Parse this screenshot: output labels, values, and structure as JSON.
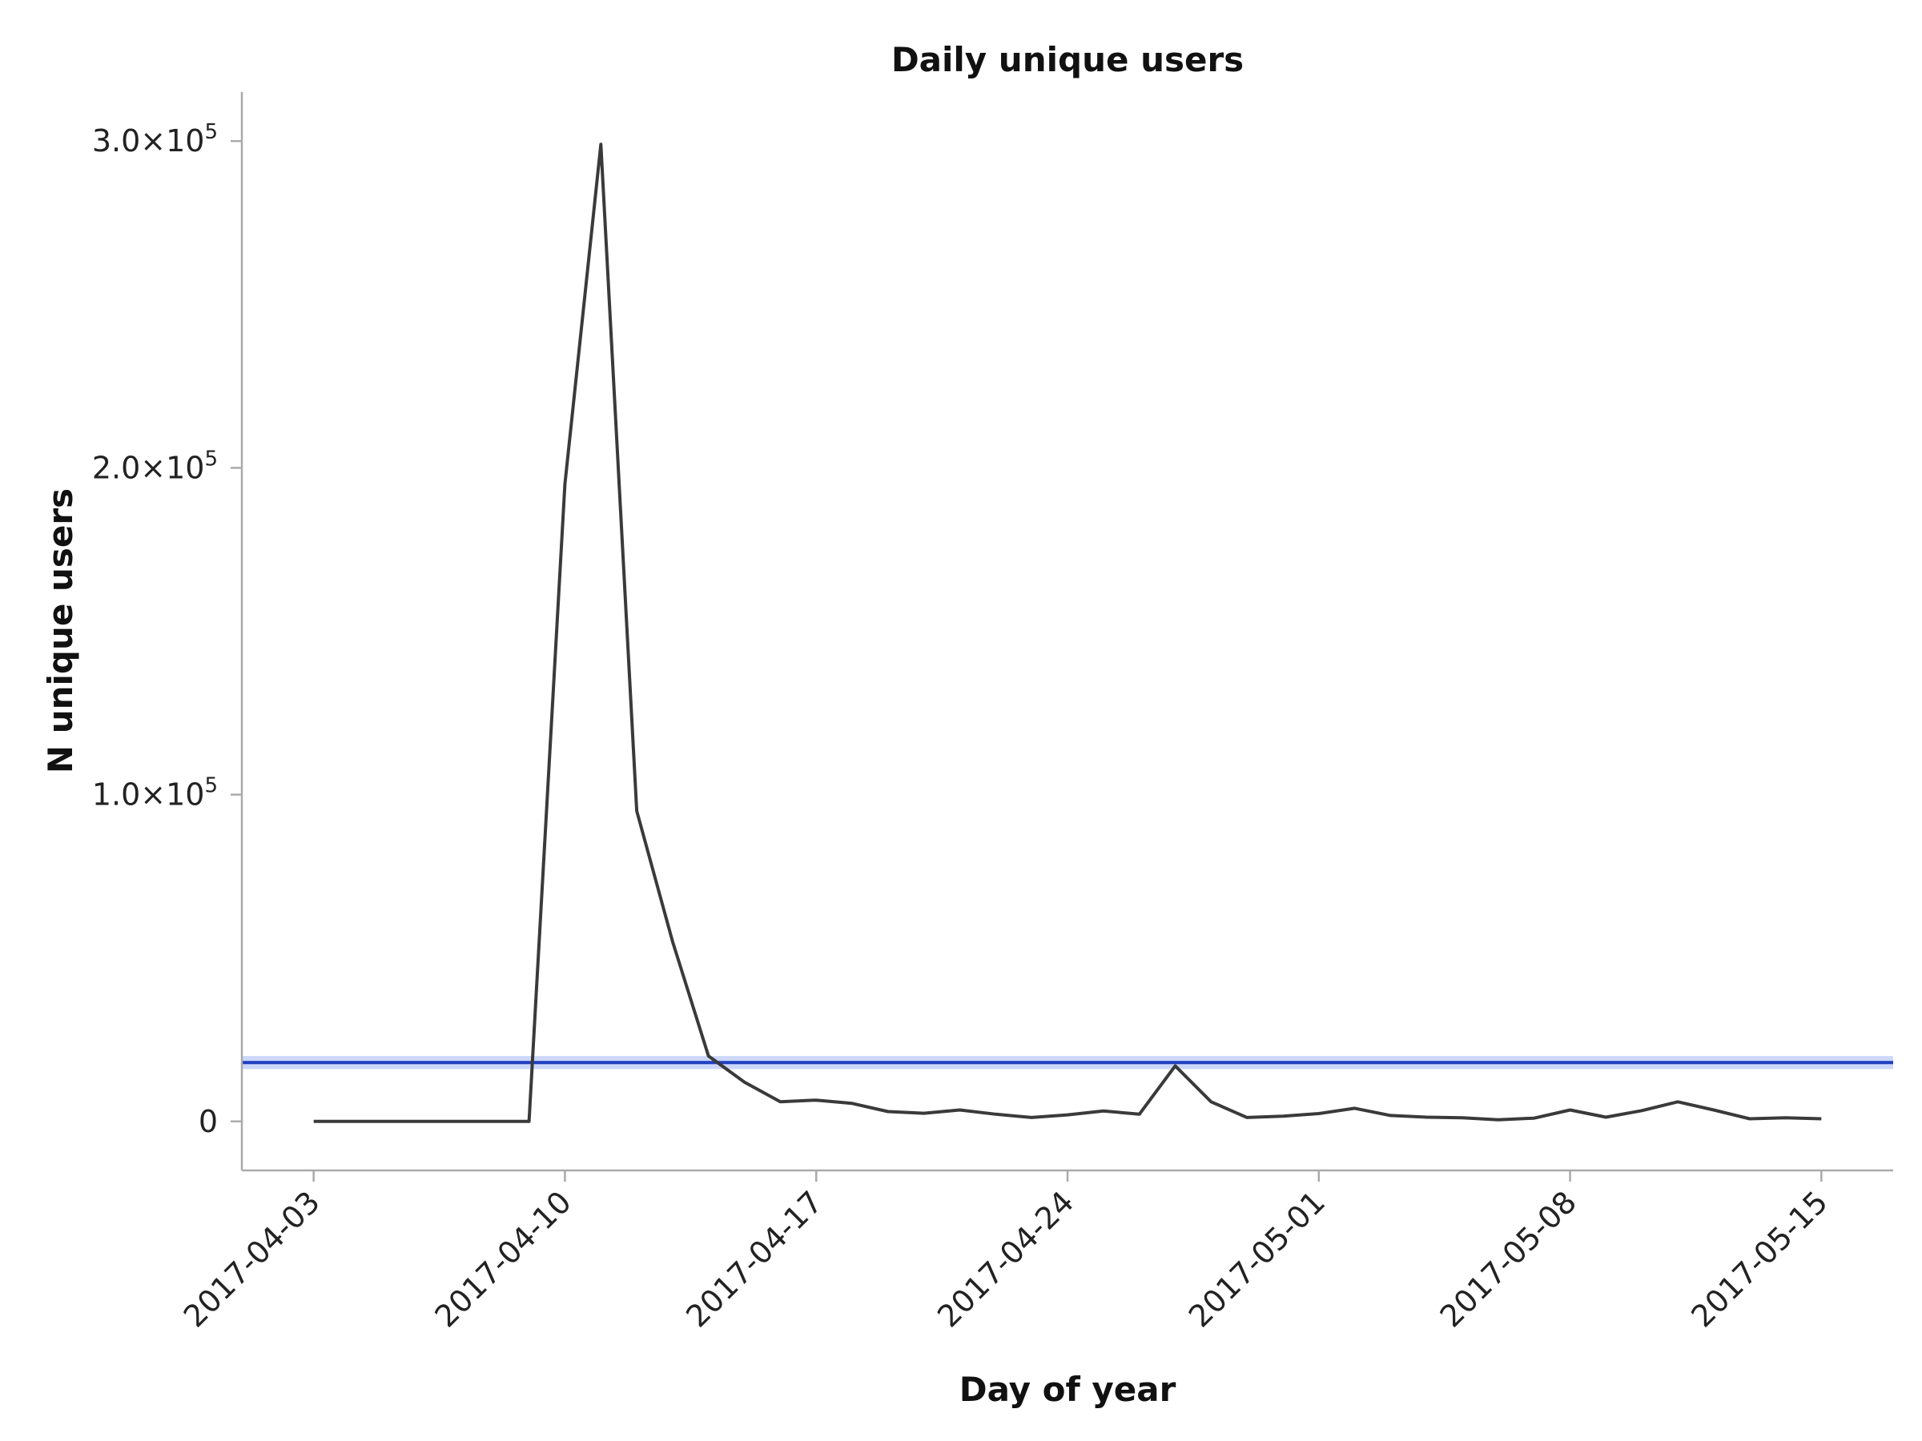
{
  "chart_data": {
    "type": "line",
    "title": "Daily unique users",
    "xlabel": "Day of year",
    "ylabel": "N unique users",
    "x_ticks": [
      "2017-04-03",
      "2017-04-10",
      "2017-04-17",
      "2017-04-24",
      "2017-05-01",
      "2017-05-08",
      "2017-05-15"
    ],
    "y_ticks": [
      {
        "value": 0,
        "mantissa": "0",
        "exponent": ""
      },
      {
        "value": 100000,
        "mantissa": "1.0×10",
        "exponent": "5"
      },
      {
        "value": 200000,
        "mantissa": "2.0×10",
        "exponent": "5"
      },
      {
        "value": 300000,
        "mantissa": "3.0×10",
        "exponent": "5"
      }
    ],
    "xlim": [
      "2017-04-01",
      "2017-05-17"
    ],
    "ylim": [
      -15000,
      315000
    ],
    "grid": false,
    "series": [
      {
        "color": "#3a3a3a",
        "x": [
          "2017-04-03",
          "2017-04-04",
          "2017-04-05",
          "2017-04-06",
          "2017-04-07",
          "2017-04-08",
          "2017-04-09",
          "2017-04-10",
          "2017-04-11",
          "2017-04-12",
          "2017-04-13",
          "2017-04-14",
          "2017-04-15",
          "2017-04-16",
          "2017-04-17",
          "2017-04-18",
          "2017-04-19",
          "2017-04-20",
          "2017-04-21",
          "2017-04-22",
          "2017-04-23",
          "2017-04-24",
          "2017-04-25",
          "2017-04-26",
          "2017-04-27",
          "2017-04-28",
          "2017-04-29",
          "2017-04-30",
          "2017-05-01",
          "2017-05-02",
          "2017-05-03",
          "2017-05-04",
          "2017-05-05",
          "2017-05-06",
          "2017-05-07",
          "2017-05-08",
          "2017-05-09",
          "2017-05-10",
          "2017-05-11",
          "2017-05-12",
          "2017-05-13",
          "2017-05-14",
          "2017-05-15"
        ],
        "values": [
          0,
          0,
          0,
          0,
          0,
          0,
          0,
          195000,
          299000,
          95000,
          55000,
          20000,
          12000,
          6000,
          6500,
          5500,
          3000,
          2500,
          3500,
          2200,
          1200,
          2000,
          3200,
          2200,
          17000,
          6000,
          1200,
          1600,
          2400,
          4000,
          1800,
          1300,
          1100,
          500,
          1000,
          3500,
          1300,
          3300,
          6000,
          3500,
          800,
          1100,
          800
        ]
      }
    ],
    "reference_line": {
      "value": 18000,
      "band": [
        16000,
        20000
      ],
      "color": "#1f3fbf",
      "band_color": "#7f9cf0"
    }
  }
}
